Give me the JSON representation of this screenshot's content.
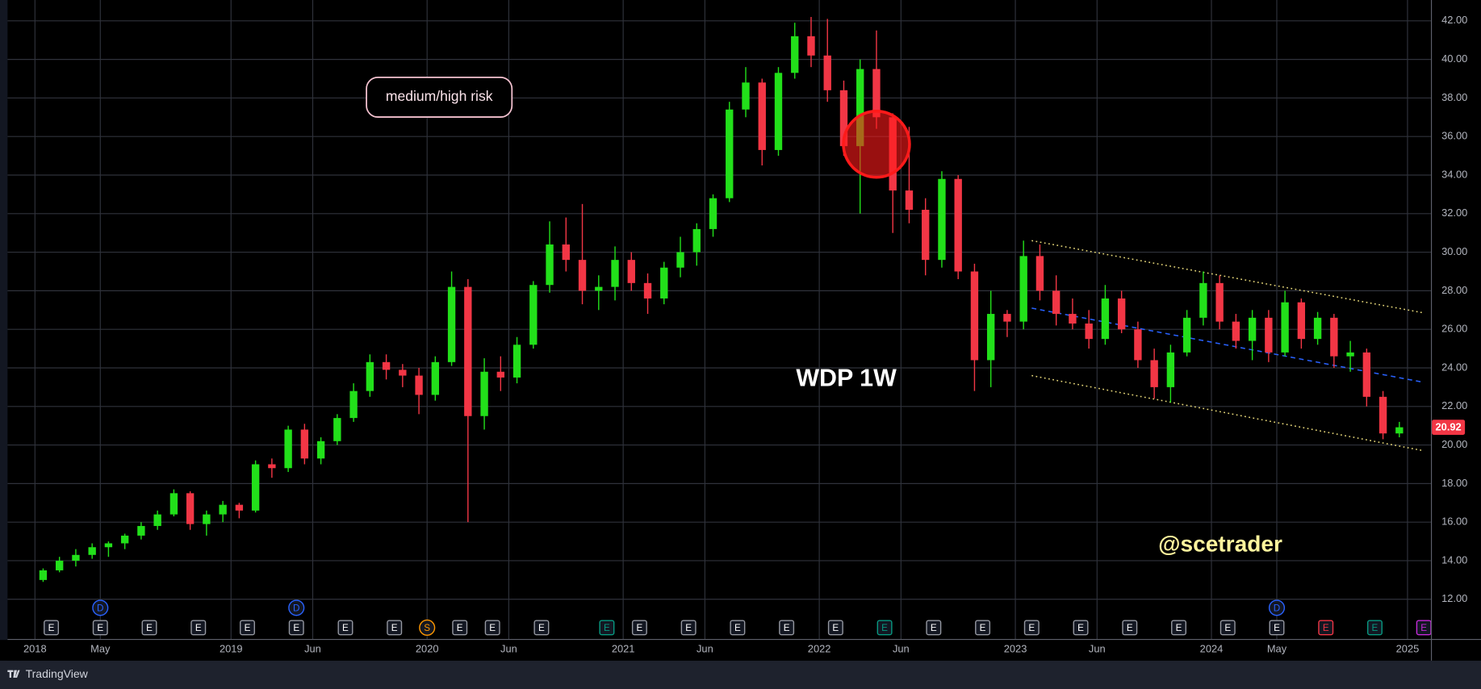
{
  "chart_data": {
    "type": "candlestick",
    "symbol_label": "WDP 1W",
    "x": [
      "2018-01",
      "2018-02",
      "2018-03",
      "2018-04",
      "2018-05",
      "2018-06",
      "2018-07",
      "2018-08",
      "2018-09",
      "2018-10",
      "2018-11",
      "2018-12",
      "2019-01",
      "2019-02",
      "2019-03",
      "2019-04",
      "2019-05",
      "2019-06",
      "2019-07",
      "2019-08",
      "2019-09",
      "2019-10",
      "2019-11",
      "2019-12",
      "2020-01",
      "2020-02",
      "2020-03",
      "2020-04",
      "2020-05",
      "2020-06",
      "2020-07",
      "2020-08",
      "2020-09",
      "2020-10",
      "2020-11",
      "2020-12",
      "2021-01",
      "2021-02",
      "2021-03",
      "2021-04",
      "2021-05",
      "2021-06",
      "2021-07",
      "2021-08",
      "2021-09",
      "2021-10",
      "2021-11",
      "2021-12",
      "2022-01",
      "2022-02",
      "2022-03",
      "2022-04",
      "2022-05",
      "2022-06",
      "2022-07",
      "2022-08",
      "2022-09",
      "2022-10",
      "2022-11",
      "2022-12",
      "2023-01",
      "2023-02",
      "2023-03",
      "2023-04",
      "2023-05",
      "2023-06",
      "2023-07",
      "2023-08",
      "2023-09",
      "2023-10",
      "2023-11",
      "2023-12",
      "2024-01",
      "2024-02",
      "2024-03",
      "2024-04",
      "2024-05",
      "2024-06",
      "2024-07",
      "2024-08",
      "2024-09",
      "2024-10",
      "2024-11",
      "2024-12"
    ],
    "open": [
      13.0,
      13.5,
      14.0,
      14.3,
      14.7,
      14.9,
      15.3,
      15.8,
      16.4,
      17.5,
      15.9,
      16.4,
      16.9,
      16.6,
      19.0,
      18.8,
      20.8,
      19.3,
      20.2,
      21.4,
      22.8,
      24.3,
      23.9,
      23.6,
      22.6,
      24.3,
      28.2,
      21.5,
      23.8,
      23.5,
      25.2,
      28.3,
      30.4,
      29.6,
      28.0,
      28.2,
      29.6,
      28.4,
      27.6,
      29.2,
      30.0,
      31.2,
      32.8,
      37.4,
      38.8,
      35.3,
      39.3,
      41.2,
      40.2,
      38.4,
      35.5,
      39.5,
      37.0,
      33.2,
      32.2,
      29.6,
      33.8,
      29.0,
      24.4,
      26.8,
      26.4,
      29.8,
      28.0,
      26.8,
      26.3,
      25.5,
      27.6,
      26.0,
      24.4,
      23.0,
      24.8,
      26.6,
      28.4,
      26.4,
      25.4,
      26.6,
      24.8,
      27.4,
      25.5,
      26.6,
      24.6,
      24.8,
      22.5,
      20.6
    ],
    "high": [
      13.6,
      14.2,
      14.6,
      14.9,
      15.0,
      15.4,
      16.0,
      16.6,
      17.7,
      17.6,
      16.6,
      17.1,
      17.0,
      19.2,
      19.3,
      21.0,
      21.1,
      20.4,
      21.6,
      23.2,
      24.7,
      24.7,
      24.2,
      24.0,
      24.6,
      29.0,
      28.6,
      24.5,
      24.6,
      25.6,
      28.5,
      31.6,
      31.8,
      32.5,
      28.8,
      30.3,
      30.0,
      28.9,
      29.5,
      30.8,
      31.5,
      33.0,
      37.8,
      39.6,
      39.0,
      39.6,
      41.9,
      42.2,
      42.1,
      38.9,
      40.0,
      41.5,
      37.2,
      36.5,
      32.8,
      34.2,
      34.0,
      29.4,
      28.0,
      27.0,
      30.6,
      30.4,
      28.8,
      27.6,
      27.0,
      28.3,
      28.0,
      26.4,
      25.0,
      25.2,
      27.0,
      29.0,
      28.8,
      26.8,
      27.0,
      27.0,
      28.0,
      27.6,
      26.9,
      26.8,
      25.4,
      25.0,
      22.8,
      21.2
    ],
    "low": [
      12.9,
      13.4,
      13.7,
      14.1,
      14.2,
      14.6,
      15.1,
      15.6,
      16.3,
      15.6,
      15.3,
      16.0,
      16.2,
      16.5,
      18.3,
      18.6,
      19.0,
      19.0,
      20.0,
      21.2,
      22.5,
      23.4,
      23.0,
      21.6,
      22.3,
      24.1,
      16.0,
      20.8,
      22.8,
      23.2,
      25.0,
      27.9,
      29.0,
      27.3,
      27.0,
      27.5,
      28.0,
      26.8,
      27.3,
      28.7,
      29.3,
      30.8,
      32.6,
      37.0,
      34.5,
      35.0,
      39.0,
      39.6,
      37.8,
      35.0,
      32.0,
      36.4,
      31.0,
      31.5,
      28.8,
      29.2,
      28.6,
      22.8,
      23.0,
      25.6,
      26.0,
      27.5,
      26.2,
      26.0,
      25.0,
      25.2,
      25.8,
      24.0,
      22.4,
      22.2,
      24.6,
      26.2,
      26.0,
      25.0,
      24.4,
      24.3,
      24.6,
      25.0,
      25.2,
      24.0,
      23.8,
      22.0,
      20.3,
      20.4
    ],
    "close": [
      13.5,
      14.0,
      14.3,
      14.7,
      14.9,
      15.3,
      15.8,
      16.4,
      17.5,
      15.9,
      16.4,
      16.9,
      16.6,
      19.0,
      18.8,
      20.8,
      19.3,
      20.2,
      21.4,
      22.8,
      24.3,
      23.9,
      23.6,
      22.6,
      24.3,
      28.2,
      21.5,
      23.8,
      23.5,
      25.2,
      28.3,
      30.4,
      29.6,
      28.0,
      28.2,
      29.6,
      28.4,
      27.6,
      29.2,
      30.0,
      31.2,
      32.8,
      37.4,
      38.8,
      35.3,
      39.3,
      41.2,
      40.2,
      38.4,
      35.5,
      39.5,
      37.0,
      33.2,
      32.2,
      29.6,
      33.8,
      29.0,
      24.4,
      26.8,
      26.4,
      29.8,
      28.0,
      26.8,
      26.3,
      25.5,
      27.6,
      26.0,
      24.4,
      23.0,
      24.8,
      26.6,
      28.4,
      26.4,
      25.4,
      26.6,
      24.8,
      27.4,
      25.5,
      26.6,
      24.6,
      24.8,
      22.5,
      20.6,
      20.92
    ],
    "up_color": "#22e01a",
    "down_color": "#f23645",
    "ylim": [
      9.94,
      43.08
    ],
    "yticks": [
      {
        "value": 12,
        "label": "12.00"
      },
      {
        "value": 14,
        "label": "14.00"
      },
      {
        "value": 16,
        "label": "16.00"
      },
      {
        "value": 18,
        "label": "18.00"
      },
      {
        "value": 20,
        "label": "20.00"
      },
      {
        "value": 22,
        "label": "22.00"
      },
      {
        "value": 24,
        "label": "24.00"
      },
      {
        "value": 26,
        "label": "26.00"
      },
      {
        "value": 28,
        "label": "28.00"
      },
      {
        "value": 30,
        "label": "30.00"
      },
      {
        "value": 32,
        "label": "32.00"
      },
      {
        "value": 34,
        "label": "34.00"
      },
      {
        "value": 36,
        "label": "36.00"
      },
      {
        "value": 38,
        "label": "38.00"
      },
      {
        "value": 40,
        "label": "40.00"
      },
      {
        "value": 42,
        "label": "42.00"
      }
    ],
    "xticks": [
      {
        "value": "2018-01",
        "label": "2018"
      },
      {
        "value": "2018-05",
        "label": "May"
      },
      {
        "value": "2019-01",
        "label": "2019"
      },
      {
        "value": "2019-06",
        "label": "Jun"
      },
      {
        "value": "2020-01",
        "label": "2020"
      },
      {
        "value": "2020-06",
        "label": "Jun"
      },
      {
        "value": "2021-01",
        "label": "2021"
      },
      {
        "value": "2021-06",
        "label": "Jun"
      },
      {
        "value": "2022-01",
        "label": "2022"
      },
      {
        "value": "2022-06",
        "label": "Jun"
      },
      {
        "value": "2023-01",
        "label": "2023"
      },
      {
        "value": "2023-06",
        "label": "Jun"
      },
      {
        "value": "2024-01",
        "label": "2024"
      },
      {
        "value": "2024-05",
        "label": "May"
      },
      {
        "value": "2025-01",
        "label": "2025"
      }
    ],
    "grid": true,
    "last_price_color": "#f23645",
    "risk_note": "medium/high risk",
    "author": "@scetrader",
    "trendlines": [
      {
        "x": [
          "2023-02",
          "2025-02"
        ],
        "values": [
          30.6,
          26.85
        ],
        "color": "#e8d97a",
        "style": "dotted"
      },
      {
        "x": [
          "2023-02",
          "2025-02"
        ],
        "values": [
          27.1,
          23.25
        ],
        "color": "#2962ff",
        "style": "dashed"
      },
      {
        "x": [
          "2023-02",
          "2025-02"
        ],
        "values": [
          23.6,
          19.7
        ],
        "color": "#e8d97a",
        "style": "dotted"
      }
    ],
    "highlight": {
      "x": "2022-04",
      "value": 35.6,
      "color": "#ff1a1a"
    },
    "lower_events": [
      {
        "x": "2018-02",
        "label": "E",
        "shape": "square",
        "color": "#9598a1"
      },
      {
        "x": "2018-05",
        "label": "E",
        "shape": "square",
        "color": "#9598a1"
      },
      {
        "x": "2018-08",
        "label": "E",
        "shape": "square",
        "color": "#9598a1"
      },
      {
        "x": "2018-11",
        "label": "E",
        "shape": "square",
        "color": "#9598a1"
      },
      {
        "x": "2019-02",
        "label": "E",
        "shape": "square",
        "color": "#9598a1"
      },
      {
        "x": "2019-05",
        "label": "E",
        "shape": "square",
        "color": "#9598a1"
      },
      {
        "x": "2019-08",
        "label": "E",
        "shape": "square",
        "color": "#9598a1"
      },
      {
        "x": "2019-11",
        "label": "E",
        "shape": "square",
        "color": "#9598a1"
      },
      {
        "x": "2020-01",
        "label": "S",
        "shape": "circle",
        "color": "#ff9800"
      },
      {
        "x": "2020-03",
        "label": "E",
        "shape": "square",
        "color": "#9598a1"
      },
      {
        "x": "2020-05",
        "label": "E",
        "shape": "square",
        "color": "#9598a1"
      },
      {
        "x": "2020-08",
        "label": "E",
        "shape": "square",
        "color": "#9598a1"
      },
      {
        "x": "2020-12",
        "label": "E",
        "shape": "square",
        "color": "#089981"
      },
      {
        "x": "2021-02",
        "label": "E",
        "shape": "square",
        "color": "#9598a1"
      },
      {
        "x": "2021-05",
        "label": "E",
        "shape": "square",
        "color": "#9598a1"
      },
      {
        "x": "2021-08",
        "label": "E",
        "shape": "square",
        "color": "#9598a1"
      },
      {
        "x": "2021-11",
        "label": "E",
        "shape": "square",
        "color": "#9598a1"
      },
      {
        "x": "2022-02",
        "label": "E",
        "shape": "square",
        "color": "#9598a1"
      },
      {
        "x": "2022-05",
        "label": "E",
        "shape": "square",
        "color": "#089981"
      },
      {
        "x": "2022-08",
        "label": "E",
        "shape": "square",
        "color": "#9598a1"
      },
      {
        "x": "2022-11",
        "label": "E",
        "shape": "square",
        "color": "#9598a1"
      },
      {
        "x": "2023-02",
        "label": "E",
        "shape": "square",
        "color": "#9598a1"
      },
      {
        "x": "2023-05",
        "label": "E",
        "shape": "square",
        "color": "#9598a1"
      },
      {
        "x": "2023-08",
        "label": "E",
        "shape": "square",
        "color": "#9598a1"
      },
      {
        "x": "2023-11",
        "label": "E",
        "shape": "square",
        "color": "#9598a1"
      },
      {
        "x": "2024-02",
        "label": "E",
        "shape": "square",
        "color": "#9598a1"
      },
      {
        "x": "2024-05",
        "label": "E",
        "shape": "square",
        "color": "#9598a1"
      },
      {
        "x": "2024-08",
        "label": "E",
        "shape": "square",
        "color": "#f23645"
      },
      {
        "x": "2024-11",
        "label": "E",
        "shape": "square",
        "color": "#089981"
      },
      {
        "x": "2025-02",
        "label": "E",
        "shape": "square",
        "color": "#c62ad9"
      }
    ],
    "upper_events": [
      {
        "x": "2018-05",
        "label": "D",
        "shape": "circle",
        "color": "#2962ff"
      },
      {
        "x": "2019-05",
        "label": "D",
        "shape": "circle",
        "color": "#2962ff"
      },
      {
        "x": "2024-05",
        "label": "D",
        "shape": "circle",
        "color": "#2962ff"
      }
    ]
  },
  "footer": {
    "brand": "TradingView"
  }
}
